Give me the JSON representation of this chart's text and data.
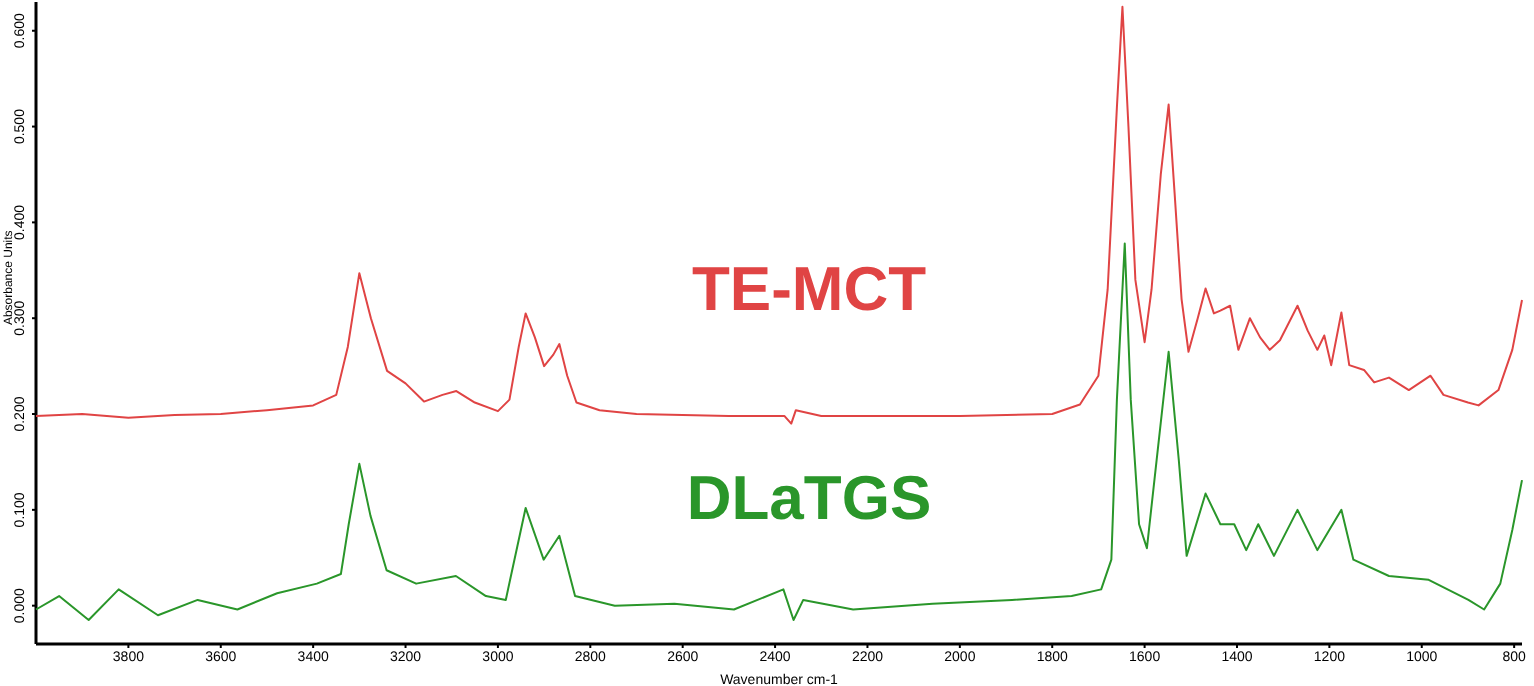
{
  "chart_data": {
    "type": "line",
    "xlabel": "Wavenumber cm-1",
    "ylabel": "Absorbance Units",
    "xlim": [
      4000,
      783
    ],
    "ylim": [
      -0.04,
      0.63
    ],
    "xticks": [
      3800,
      3600,
      3400,
      3200,
      3000,
      2800,
      2600,
      2400,
      2200,
      2000,
      1800,
      1600,
      1400,
      1200,
      1000,
      800
    ],
    "yticks": [
      {
        "value": 0,
        "label": "0.000"
      },
      {
        "value": 0.1,
        "label": "0.100"
      },
      {
        "value": 0.2,
        "label": "0.200"
      },
      {
        "value": 0.3,
        "label": "0.300"
      },
      {
        "value": 0.4,
        "label": "0.400"
      },
      {
        "value": 0.5,
        "label": "0.500"
      },
      {
        "value": 0.6,
        "label": "0.600"
      }
    ],
    "grid": false,
    "legend": false,
    "marker": "none",
    "line_style": "solid",
    "series": [
      {
        "name": "TE-MCT",
        "color": "#e04444",
        "x": [
          4000,
          3900,
          3800,
          3700,
          3600,
          3500,
          3400,
          3350,
          3325,
          3300,
          3275,
          3240,
          3200,
          3160,
          3120,
          3090,
          3050,
          3000,
          2975,
          2955,
          2940,
          2920,
          2900,
          2880,
          2867,
          2850,
          2830,
          2780,
          2700,
          2500,
          2380,
          2365,
          2355,
          2300,
          2000,
          1800,
          1740,
          1700,
          1680,
          1660,
          1648,
          1635,
          1620,
          1600,
          1585,
          1565,
          1548,
          1535,
          1520,
          1505,
          1485,
          1468,
          1450,
          1436,
          1415,
          1397,
          1372,
          1350,
          1329,
          1307,
          1269,
          1247,
          1226,
          1211,
          1196,
          1174,
          1157,
          1125,
          1103,
          1071,
          1028,
          981,
          953,
          900,
          877,
          834,
          804,
          783
        ],
        "values": [
          0.198,
          0.2,
          0.196,
          0.199,
          0.2,
          0.204,
          0.209,
          0.22,
          0.27,
          0.347,
          0.3,
          0.245,
          0.232,
          0.213,
          0.22,
          0.224,
          0.212,
          0.203,
          0.215,
          0.27,
          0.305,
          0.28,
          0.25,
          0.262,
          0.273,
          0.24,
          0.212,
          0.204,
          0.2,
          0.198,
          0.198,
          0.19,
          0.204,
          0.198,
          0.198,
          0.2,
          0.21,
          0.24,
          0.33,
          0.52,
          0.625,
          0.5,
          0.34,
          0.275,
          0.33,
          0.45,
          0.523,
          0.43,
          0.32,
          0.265,
          0.3,
          0.331,
          0.305,
          0.308,
          0.313,
          0.267,
          0.3,
          0.28,
          0.267,
          0.277,
          0.313,
          0.287,
          0.267,
          0.282,
          0.251,
          0.306,
          0.251,
          0.246,
          0.233,
          0.238,
          0.225,
          0.24,
          0.22,
          0.212,
          0.209,
          0.225,
          0.267,
          0.319
        ]
      },
      {
        "name": "DLaTGS",
        "color": "#2a962a",
        "x": [
          4000,
          3950,
          3886,
          3821,
          3736,
          3650,
          3564,
          3478,
          3392,
          3340,
          3323,
          3300,
          3276,
          3241,
          3177,
          3091,
          3026,
          2983,
          2940,
          2901,
          2867,
          2833,
          2747,
          2618,
          2489,
          2382,
          2360,
          2339,
          2231,
          2059,
          1887,
          1758,
          1694,
          1672,
          1660,
          1643,
          1630,
          1612,
          1595,
          1574,
          1548,
          1526,
          1509,
          1468,
          1436,
          1406,
          1380,
          1354,
          1320,
          1269,
          1226,
          1174,
          1148,
          1071,
          985,
          899,
          865,
          830,
          804,
          783
        ],
        "values": [
          -0.004,
          0.01,
          -0.015,
          0.017,
          -0.01,
          0.006,
          -0.004,
          0.013,
          0.023,
          0.033,
          0.085,
          0.148,
          0.094,
          0.037,
          0.023,
          0.031,
          0.01,
          0.006,
          0.102,
          0.048,
          0.073,
          0.01,
          0,
          0.002,
          -0.004,
          0.017,
          -0.015,
          0.006,
          -0.004,
          0.002,
          0.006,
          0.01,
          0.017,
          0.048,
          0.215,
          0.378,
          0.215,
          0.085,
          0.06,
          0.152,
          0.265,
          0.152,
          0.052,
          0.117,
          0.085,
          0.085,
          0.058,
          0.085,
          0.052,
          0.1,
          0.058,
          0.1,
          0.048,
          0.031,
          0.027,
          0.006,
          -0.004,
          0.023,
          0.079,
          0.131
        ]
      }
    ]
  }
}
